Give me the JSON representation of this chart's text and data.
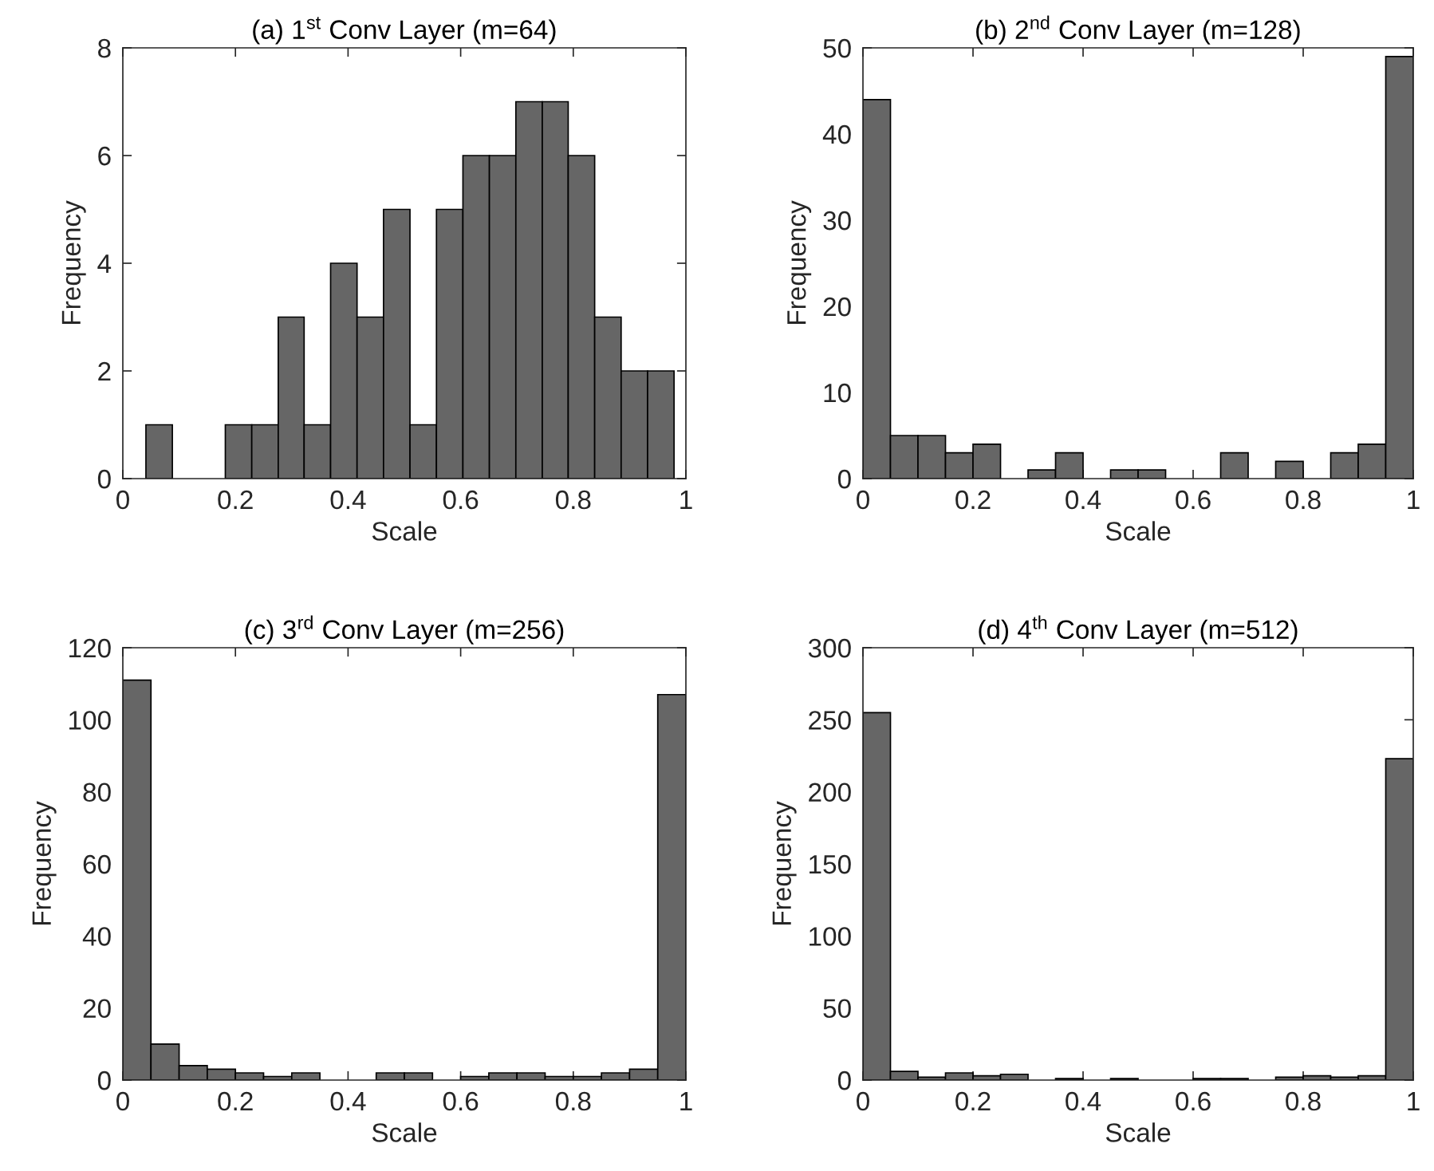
{
  "chart_data": [
    {
      "type": "histogram",
      "title": "(a) 1$^{st}$ Conv Layer (m=64)",
      "xlabel": "Scale",
      "ylabel": "Frequency",
      "color": "#666666",
      "bins": [
        0.041,
        0.088,
        0.182,
        0.229,
        0.276,
        0.322,
        0.369,
        0.416,
        0.463,
        0.51,
        0.557,
        0.604,
        0.651,
        0.698,
        0.745,
        0.791,
        0.838,
        0.885,
        0.932,
        0.979
      ],
      "values": [
        1,
        0,
        1,
        1,
        3,
        1,
        4,
        3,
        5,
        1,
        5,
        6,
        6,
        7,
        7,
        6,
        3,
        2,
        2
      ],
      "xlim": [
        0,
        1
      ],
      "xticks": [
        0,
        0.2,
        0.4,
        0.6,
        0.8,
        1
      ],
      "ylim": [
        0,
        8
      ],
      "yticks": [
        0,
        2,
        4,
        6,
        8
      ]
    },
    {
      "type": "histogram",
      "title": "(b) 2$^{nd}$ Conv Layer (m=128)",
      "xlabel": "Scale",
      "ylabel": "Frequency",
      "color": "#666666",
      "bins": [
        0,
        0.05,
        0.1,
        0.15,
        0.2,
        0.25,
        0.3,
        0.35,
        0.4,
        0.45,
        0.5,
        0.55,
        0.6,
        0.65,
        0.7,
        0.75,
        0.8,
        0.85,
        0.9,
        0.95,
        1
      ],
      "values": [
        44,
        5,
        5,
        3,
        4,
        0,
        1,
        3,
        0,
        1,
        1,
        0,
        0,
        3,
        0,
        2,
        0,
        3,
        4,
        49
      ],
      "xlim": [
        0,
        1
      ],
      "xticks": [
        0,
        0.2,
        0.4,
        0.6,
        0.8,
        1
      ],
      "ylim": [
        0,
        50
      ],
      "yticks": [
        0,
        10,
        20,
        30,
        40,
        50
      ]
    },
    {
      "type": "histogram",
      "title": "(c) 3$^{rd}$ Conv Layer (m=256)",
      "xlabel": "Scale",
      "ylabel": "Frequency",
      "color": "#666666",
      "bins": [
        0,
        0.05,
        0.1,
        0.15,
        0.2,
        0.25,
        0.3,
        0.35,
        0.4,
        0.45,
        0.5,
        0.55,
        0.6,
        0.65,
        0.7,
        0.75,
        0.8,
        0.85,
        0.9,
        0.95,
        1
      ],
      "values": [
        111,
        10,
        4,
        3,
        2,
        1,
        2,
        0,
        0,
        2,
        2,
        0,
        1,
        2,
        2,
        1,
        1,
        2,
        3,
        107
      ],
      "xlim": [
        0,
        1
      ],
      "xticks": [
        0,
        0.2,
        0.4,
        0.6,
        0.8,
        1
      ],
      "ylim": [
        0,
        120
      ],
      "yticks": [
        0,
        20,
        40,
        60,
        80,
        100,
        120
      ]
    },
    {
      "type": "histogram",
      "title": "(d) 4$^{th}$ Conv Layer (m=512)",
      "xlabel": "Scale",
      "ylabel": "Frequency",
      "color": "#666666",
      "bins": [
        0,
        0.05,
        0.1,
        0.15,
        0.2,
        0.25,
        0.3,
        0.35,
        0.4,
        0.45,
        0.5,
        0.55,
        0.6,
        0.65,
        0.7,
        0.75,
        0.8,
        0.85,
        0.9,
        0.95,
        1
      ],
      "values": [
        255,
        6,
        2,
        5,
        3,
        4,
        0,
        1,
        0,
        1,
        0,
        0,
        1,
        1,
        0,
        2,
        3,
        2,
        3,
        223
      ],
      "xlim": [
        0,
        1
      ],
      "xticks": [
        0,
        0.2,
        0.4,
        0.6,
        0.8,
        1
      ],
      "ylim": [
        0,
        300
      ],
      "yticks": [
        0,
        50,
        100,
        150,
        200,
        250,
        300
      ]
    }
  ]
}
